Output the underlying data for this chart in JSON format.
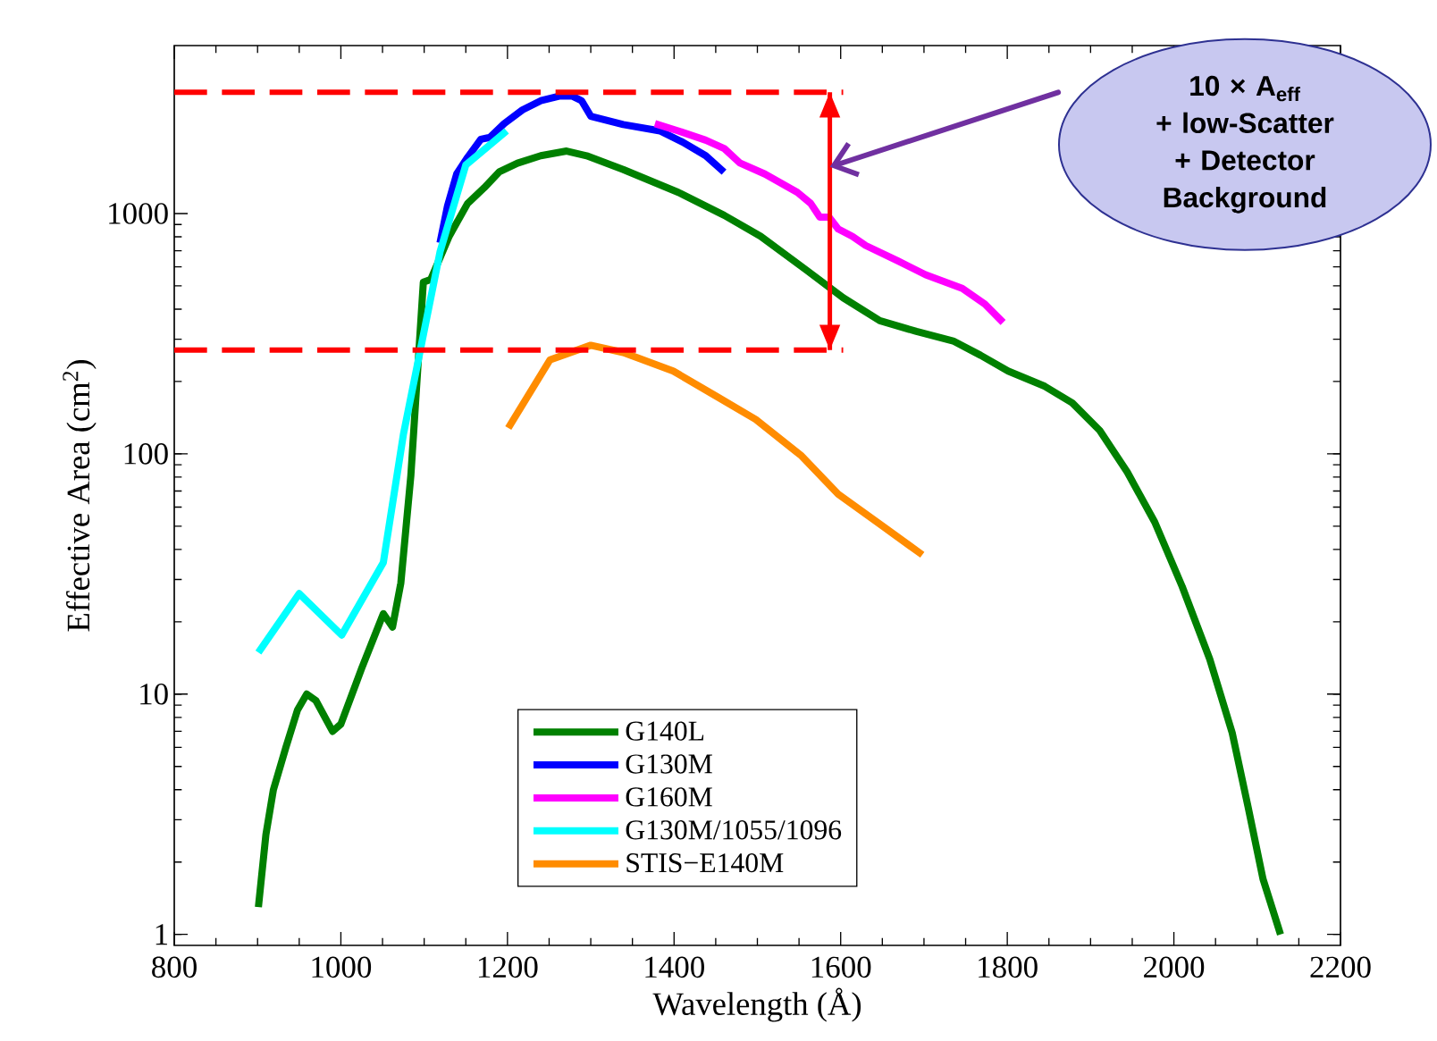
{
  "chart_data": {
    "type": "line",
    "xlabel": "Wavelength (Å)",
    "ylabel": "Effective Area (cm$^{2}$)",
    "xlim": [
      800,
      2200
    ],
    "ylim": [
      0.9,
      5000
    ],
    "log": "y",
    "legend": "bottom",
    "xticks": [
      800,
      1000,
      1200,
      1400,
      1600,
      1800,
      2000,
      2200
    ],
    "yticks": [
      1,
      10,
      100,
      1000
    ],
    "series": [
      {
        "name": "G140L",
        "color": "#008000",
        "x": [
          901,
          910,
          919,
          934,
          948,
          959,
          970,
          990,
          1000,
          1025,
          1051,
          1062,
          1072,
          1084,
          1099,
          1108,
          1130,
          1152,
          1172,
          1190,
          1212,
          1240,
          1271,
          1295,
          1339,
          1405,
          1460,
          1504,
          1559,
          1603,
          1647,
          1691,
          1735,
          1768,
          1801,
          1845,
          1878,
          1911,
          1944,
          1977,
          2010,
          2043,
          2070,
          2089,
          2107,
          2128
        ],
        "values": [
          1.3,
          2.6,
          4.0,
          6.0,
          8.6,
          10,
          9.4,
          7.0,
          7.5,
          12.8,
          21.6,
          19,
          29,
          81,
          518,
          532,
          804,
          1100,
          1280,
          1490,
          1620,
          1740,
          1820,
          1740,
          1525,
          1225,
          984,
          804,
          581,
          446,
          358,
          323,
          295,
          257,
          221,
          191,
          163,
          125,
          84,
          52,
          28,
          14,
          6.9,
          3.4,
          1.7,
          1.0
        ]
      },
      {
        "name": "G130M",
        "color": "#0000ff",
        "x": [
          1119,
          1128,
          1139,
          1152,
          1168,
          1179,
          1196,
          1218,
          1240,
          1262,
          1278,
          1289,
          1300,
          1339,
          1383,
          1410,
          1438,
          1460
        ],
        "values": [
          755,
          1074,
          1460,
          1711,
          2037,
          2075,
          2366,
          2698,
          2947,
          3080,
          3080,
          2947,
          2541,
          2345,
          2207,
          1985,
          1741,
          1487
        ]
      },
      {
        "name": "G160M",
        "color": "#ff00ff",
        "x": [
          1377,
          1405,
          1438,
          1460,
          1479,
          1509,
          1548,
          1564,
          1575,
          1586,
          1597,
          1614,
          1630,
          1669,
          1702,
          1746,
          1773,
          1795
        ],
        "values": [
          2366,
          2207,
          2020,
          1867,
          1623,
          1460,
          1225,
          1102,
          966,
          966,
          862,
          804,
          736,
          634,
          556,
          488,
          420,
          352
        ]
      },
      {
        "name": "G130M/1055/1096",
        "color": "#00ffff",
        "x": [
          901,
          950,
          1001,
          1051,
          1075,
          1119,
          1150,
          1199
        ],
        "values": [
          14.9,
          26.2,
          17.6,
          35.3,
          120,
          692,
          1593,
          2207
        ]
      },
      {
        "name": "STIS−E140M",
        "color": "#ff8c00",
        "x": [
          1201,
          1251,
          1300,
          1339,
          1399,
          1449,
          1498,
          1553,
          1597,
          1647,
          1698
        ],
        "values": [
          128,
          246,
          283,
          264,
          221,
          175,
          139,
          98,
          68,
          51,
          38
        ]
      },
      {
        "color": "#ff0000",
        "line_style": "dashed",
        "x": [
          800,
          1603
        ],
        "values": [
          3200,
          3200
        ]
      },
      {
        "color": "#ff0000",
        "line_style": "dashed",
        "x": [
          800,
          1603
        ],
        "values": [
          270,
          270
        ]
      },
      {
        "color": "#ff0000",
        "x": [
          1587,
          1587
        ],
        "values": [
          270,
          3200
        ]
      }
    ],
    "annotations": [
      "10 × A$_{eff}$ + low-Scatter + Detector Background"
    ]
  }
}
